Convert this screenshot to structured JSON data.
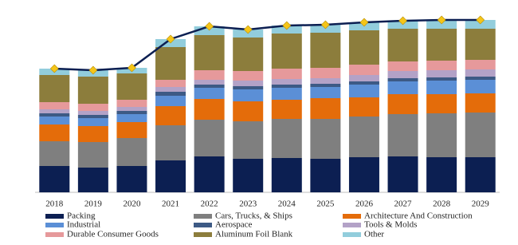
{
  "chart_data": {
    "type": "bar",
    "stacked": true,
    "categories": [
      "2018",
      "2019",
      "2020",
      "2021",
      "2022",
      "2023",
      "2024",
      "2025",
      "2026",
      "2027",
      "2028",
      "2029"
    ],
    "ylim": [
      0,
      220
    ],
    "series": [
      {
        "name": "Packing",
        "color": "#0c1f52",
        "values": [
          33,
          31,
          33,
          40,
          45,
          42,
          43,
          42,
          44,
          45,
          44,
          44
        ]
      },
      {
        "name": "Cars, Trucks, & Ships",
        "color": "#7f7f7f",
        "values": [
          31,
          32,
          35,
          44,
          46,
          47,
          49,
          50,
          51,
          53,
          55,
          56
        ]
      },
      {
        "name": "Architecture And Construction",
        "color": "#e46c0a",
        "values": [
          21,
          20,
          20,
          24,
          26,
          25,
          24,
          26,
          24,
          25,
          24,
          24
        ]
      },
      {
        "name": "Industrial",
        "color": "#5b8fd6",
        "values": [
          10,
          10,
          10,
          13,
          14,
          15,
          15,
          14,
          16,
          16,
          17,
          17
        ]
      },
      {
        "name": "Aerospace",
        "color": "#3d5a85",
        "values": [
          4,
          4,
          4,
          5,
          4,
          4,
          4,
          4,
          4,
          4,
          4,
          4
        ]
      },
      {
        "name": "Tools & Molds",
        "color": "#b3a2c7",
        "values": [
          5,
          5,
          5,
          6,
          6,
          7,
          7,
          7,
          8,
          9,
          9,
          9
        ]
      },
      {
        "name": "Durable Consumer Goods",
        "color": "#e6999b",
        "values": [
          9,
          9,
          9,
          9,
          12,
          12,
          13,
          13,
          13,
          12,
          12,
          12
        ]
      },
      {
        "name": "Aluminum Foil Blank",
        "color": "#8c7d3c",
        "values": [
          34,
          34,
          33,
          41,
          44,
          42,
          44,
          44,
          43,
          41,
          40,
          39
        ]
      },
      {
        "name": "Other",
        "color": "#92cddc",
        "values": [
          8,
          8,
          7,
          10,
          11,
          10,
          10,
          10,
          10,
          10,
          11,
          11
        ]
      }
    ],
    "line": {
      "color": "#0c1f52",
      "marker_color": "#f5c518",
      "values": [
        155,
        153,
        156,
        192,
        208,
        204,
        209,
        210,
        213,
        215,
        216,
        216
      ]
    }
  }
}
